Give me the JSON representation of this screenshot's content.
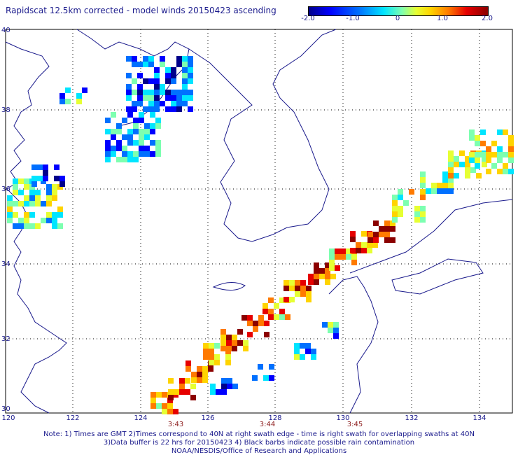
{
  "title": "Rapidscat 12.5km corrected - model winds 20150423 ascending",
  "colorbar": {
    "labels": [
      "-2.0",
      "-1.0",
      "0",
      "1.0",
      "2.0"
    ],
    "colors": [
      "#00008b",
      "#0000ff",
      "#0070ff",
      "#00e5ff",
      "#7dffb0",
      "#e6ff33",
      "#ffd400",
      "#ff7a00",
      "#e60000",
      "#8b0000"
    ]
  },
  "axes": {
    "lat_labels": [
      "40",
      "38",
      "36",
      "34",
      "32",
      "30"
    ],
    "lon_labels": [
      "120",
      "122",
      "124",
      "126",
      "128",
      "130",
      "132",
      "134"
    ]
  },
  "swath_times": [
    "3:43",
    "3:44",
    "3:45"
  ],
  "notes": [
    "Note: 1) Times are GMT 2)Times correspond to 40N at right swath edge - time is right swath for overlapping swaths at 40N",
    "3)Data buffer is 22 hrs for 20150423 4) Black barbs indicate possible rain contamination",
    "NOAA/NESDIS/Office of Research and Applications"
  ]
}
